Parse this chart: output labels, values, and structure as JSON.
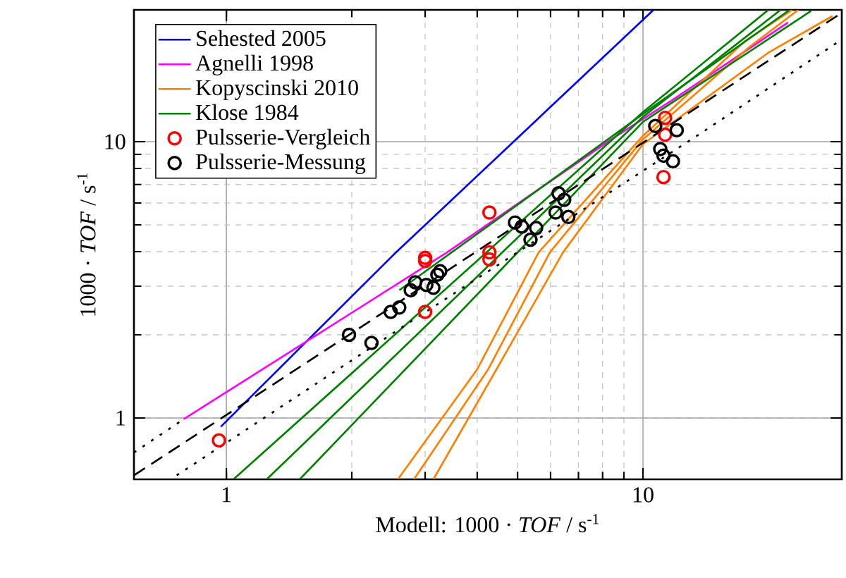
{
  "chart_data": {
    "type": "line",
    "xlabel": "Modell: 1000 · *TOF* /  s$^{-1}$",
    "ylabel": "1000 · *TOF* /  s$^{-1}$",
    "log": "xy",
    "xlim": [
      0.6,
      30
    ],
    "ylim": [
      0.6,
      30
    ],
    "xticks": [
      1,
      10
    ],
    "yticks": [
      1,
      10
    ],
    "grid": true,
    "legend": "top left",
    "series": [
      {
        "name": "Sehested 2005",
        "color": "#0000ff",
        "x": [
          0.97,
          2.52,
          10.6
        ],
        "values": [
          0.93,
          3.9,
          30
        ]
      },
      {
        "name": "Agnelli 1998",
        "color": "#ff00ff",
        "x": [
          0.79,
          3.39,
          8.4,
          11.8,
          22.3
        ],
        "values": [
          0.99,
          3.98,
          10.2,
          14.2,
          27
        ]
      },
      {
        "name": "Kopyscinski 2010",
        "color": "#ff8000",
        "x": [
          2.58,
          4.0,
          5.62,
          10,
          17.5,
          22.8
        ],
        "values": [
          0.6,
          1.5,
          3.98,
          10.5,
          23,
          30
        ]
      },
      {
        "type": "line",
        "color": "#ff8000",
        "x": [
          2.82,
          4.25,
          5.98,
          10,
          18,
          23.6
        ],
        "values": [
          0.6,
          1.5,
          3.98,
          10.2,
          22,
          30
        ]
      },
      {
        "type": "line",
        "color": "#ff8000",
        "x": [
          3.14,
          4.45,
          6.43,
          10,
          20,
          28.5
        ],
        "values": [
          0.6,
          1.5,
          3.98,
          9.8,
          21,
          28.5
        ]
      },
      {
        "name": "Klose 1984",
        "color": "#008000",
        "x": [
          1.04,
          10,
          20
        ],
        "values": [
          0.6,
          12.8,
          30
        ]
      },
      {
        "type": "line",
        "color": "#008000",
        "x": [
          1.25,
          10,
          21.4
        ],
        "values": [
          0.6,
          12.3,
          30
        ]
      },
      {
        "type": "line",
        "color": "#008000",
        "x": [
          1.5,
          10,
          25.3
        ],
        "values": [
          0.6,
          11.8,
          29.7
        ]
      },
      {
        "type": "line",
        "color": "#008000",
        "x": [
          2.6,
          10,
          22.5
        ],
        "values": [
          2.9,
          12.6,
          30
        ]
      },
      {
        "type": "line",
        "color": "#000000",
        "line_style": "dashed",
        "x": [
          0.6,
          29.3
        ],
        "values": [
          0.62,
          28.6
        ]
      },
      {
        "type": "line",
        "color": "#000000",
        "line_style": "dotted",
        "x": [
          0.76,
          2.64,
          13.6,
          29.2
        ],
        "values": [
          0.62,
          2.13,
          10.6,
          22.8
        ]
      },
      {
        "type": "line",
        "color": "#000000",
        "line_style": "dotted",
        "x": [
          0.6,
          0.79
        ],
        "values": [
          0.75,
          0.99
        ]
      },
      {
        "name": "Pulsserie-Vergleich",
        "type": "scatter",
        "marker": "circle",
        "color": "#ff0000",
        "x": [
          0.96,
          3.0,
          3.0,
          3.0,
          4.28,
          4.28,
          4.28,
          11.3,
          11.3,
          11.2
        ],
        "values": [
          0.83,
          3.8,
          3.7,
          2.42,
          5.54,
          3.98,
          3.75,
          12.2,
          10.6,
          7.45
        ]
      },
      {
        "name": "Pulsserie-Messung",
        "type": "scatter",
        "marker": "circle",
        "color": "#000000",
        "x": [
          1.97,
          2.23,
          2.48,
          2.6,
          2.77,
          2.84,
          3.02,
          3.14,
          3.21,
          3.26,
          4.93,
          5.12,
          5.54,
          5.37,
          6.27,
          6.47,
          6.17,
          6.62,
          10.7,
          12.05,
          11.0,
          11.2,
          11.8
        ],
        "values": [
          2.0,
          1.87,
          2.42,
          2.51,
          2.9,
          3.1,
          3.03,
          2.96,
          3.3,
          3.4,
          5.1,
          4.93,
          4.87,
          4.42,
          6.5,
          6.16,
          5.54,
          5.34,
          11.4,
          11.0,
          9.4,
          8.9,
          8.5
        ]
      }
    ]
  }
}
